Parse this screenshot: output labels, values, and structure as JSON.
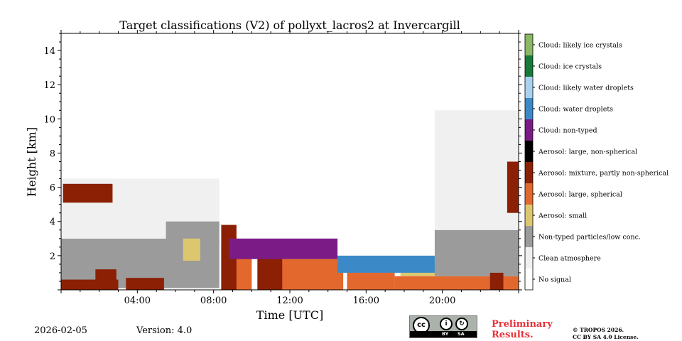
{
  "chart_data": {
    "type": "heatmap",
    "title": "Target classifications (V2) of pollyxt_lacros2 at Invercargill",
    "xlabel": "Time [UTC]",
    "ylabel": "Height [km]",
    "xlim_hours": [
      0,
      24
    ],
    "ylim_km": [
      0,
      15
    ],
    "x_ticks": [
      {
        "value": 4,
        "label": "04:00"
      },
      {
        "value": 8,
        "label": "08:00"
      },
      {
        "value": 12,
        "label": "12:00"
      },
      {
        "value": 16,
        "label": "16:00"
      },
      {
        "value": 20,
        "label": "20:00"
      }
    ],
    "y_ticks": [
      {
        "value": 2,
        "label": "2"
      },
      {
        "value": 4,
        "label": "4"
      },
      {
        "value": 6,
        "label": "6"
      },
      {
        "value": 8,
        "label": "8"
      },
      {
        "value": 10,
        "label": "10"
      },
      {
        "value": 12,
        "label": "12"
      },
      {
        "value": 14,
        "label": "14"
      }
    ],
    "classes": [
      {
        "label": "No signal",
        "color": "#ffffff"
      },
      {
        "label": "Clean atmosphere",
        "color": "#f0f0f0"
      },
      {
        "label": "Non-typed particles/low conc.",
        "color": "#9b9b9b"
      },
      {
        "label": "Aerosol: small",
        "color": "#dcc76f"
      },
      {
        "label": "Aerosol: large, spherical",
        "color": "#e3682d"
      },
      {
        "label": "Aerosol: mixture, partly non-spherical",
        "color": "#8c2005"
      },
      {
        "label": "Aerosol: large, non-spherical",
        "color": "#000000"
      },
      {
        "label": "Cloud: non-typed",
        "color": "#7a1b86"
      },
      {
        "label": "Cloud: water droplets",
        "color": "#3b8ac7"
      },
      {
        "label": "Cloud: likely water droplets",
        "color": "#a9d2f0"
      },
      {
        "label": "Cloud: ice crystals",
        "color": "#177a39"
      },
      {
        "label": "Cloud: likely ice crystals",
        "color": "#8ab864"
      }
    ],
    "regions": [
      {
        "class": 2,
        "t0": 0.0,
        "t1": 8.3,
        "h0": 0.1,
        "h1": 3.0
      },
      {
        "class": 1,
        "t0": 0.0,
        "t1": 8.3,
        "h0": 3.0,
        "h1": 6.5
      },
      {
        "class": 2,
        "t0": 5.5,
        "t1": 8.3,
        "h0": 2.5,
        "h1": 4.0
      },
      {
        "class": 3,
        "t0": 6.4,
        "t1": 7.3,
        "h0": 1.7,
        "h1": 3.0
      },
      {
        "class": 5,
        "t0": 0.0,
        "t1": 3.0,
        "h0": 0.0,
        "h1": 0.6
      },
      {
        "class": 5,
        "t0": 1.8,
        "t1": 2.9,
        "h0": 0.0,
        "h1": 1.2
      },
      {
        "class": 5,
        "t0": 3.4,
        "t1": 5.4,
        "h0": 0.0,
        "h1": 0.7
      },
      {
        "class": 5,
        "t0": 0.1,
        "t1": 2.7,
        "h0": 5.1,
        "h1": 6.2
      },
      {
        "class": 4,
        "t0": 8.4,
        "t1": 10.0,
        "h0": 0.0,
        "h1": 2.8
      },
      {
        "class": 5,
        "t0": 8.4,
        "t1": 9.2,
        "h0": 0.0,
        "h1": 3.8
      },
      {
        "class": 4,
        "t0": 10.3,
        "t1": 14.8,
        "h0": 0.0,
        "h1": 1.8
      },
      {
        "class": 5,
        "t0": 10.3,
        "t1": 11.6,
        "h0": 0.0,
        "h1": 2.6
      },
      {
        "class": 4,
        "t0": 15.0,
        "t1": 17.5,
        "h0": 0.0,
        "h1": 1.2
      },
      {
        "class": 4,
        "t0": 17.5,
        "t1": 24.0,
        "h0": 0.0,
        "h1": 0.8
      },
      {
        "class": 3,
        "t0": 17.8,
        "t1": 20.9,
        "h0": 0.8,
        "h1": 1.8
      },
      {
        "class": 2,
        "t0": 19.6,
        "t1": 24.0,
        "h0": 0.8,
        "h1": 3.5
      },
      {
        "class": 1,
        "t0": 19.6,
        "t1": 24.0,
        "h0": 3.5,
        "h1": 10.5
      },
      {
        "class": 5,
        "t0": 22.5,
        "t1": 23.2,
        "h0": 0.0,
        "h1": 1.0
      },
      {
        "class": 5,
        "t0": 23.4,
        "t1": 24.0,
        "h0": 4.5,
        "h1": 7.5
      },
      {
        "class": 7,
        "t0": 8.8,
        "t1": 14.5,
        "h0": 1.8,
        "h1": 3.0
      },
      {
        "class": 8,
        "t0": 14.5,
        "t1": 19.6,
        "h0": 1.0,
        "h1": 2.0
      }
    ]
  },
  "footer": {
    "date": "2026-02-05",
    "version": "Version: 4.0",
    "cc_by": "BY",
    "cc_sa": "SA",
    "preliminary_line1": "Preliminary",
    "preliminary_line2": "Results.",
    "copyright_line1": "© TROPOS 2026.",
    "copyright_line2": "CC BY SA 4.0 License."
  }
}
